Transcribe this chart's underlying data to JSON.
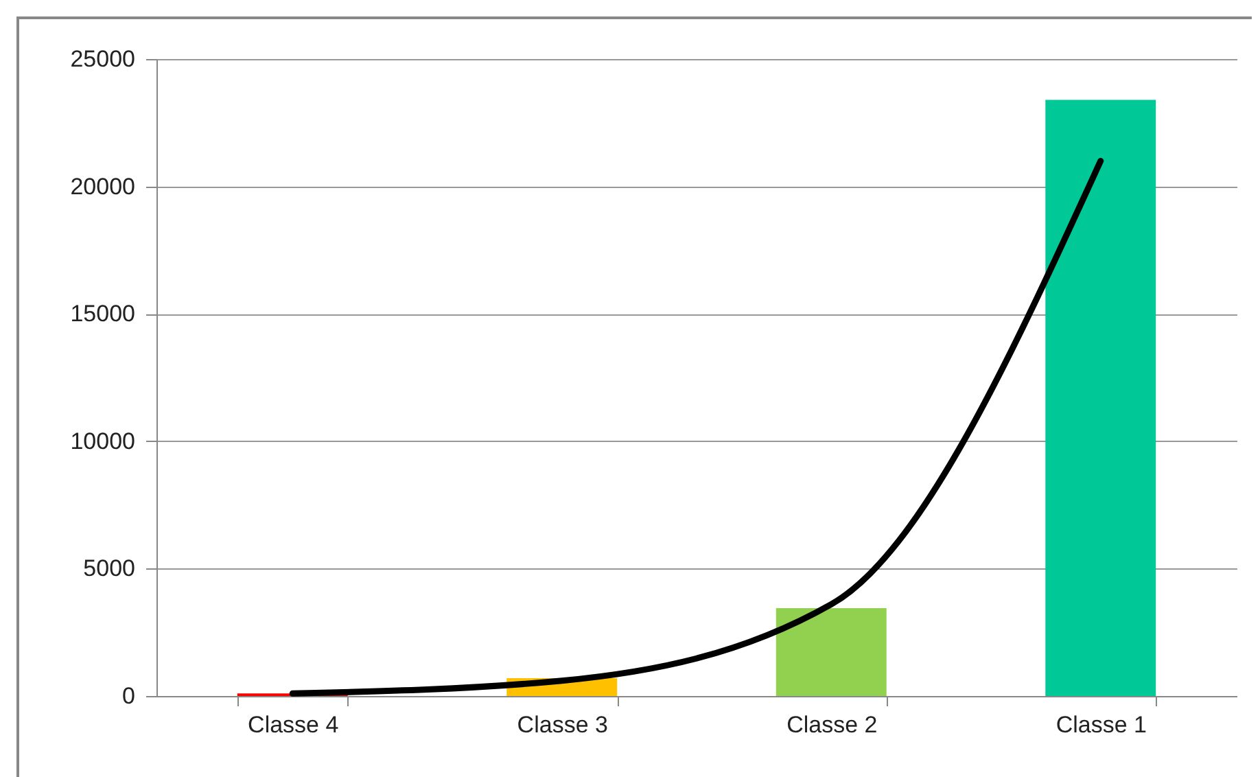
{
  "chart_data": {
    "type": "bar",
    "categories": [
      "Classe 4",
      "Classe 3",
      "Classe 2",
      "Classe 1"
    ],
    "series": [
      {
        "colors": [
          "#ff0000",
          "#ffc000",
          "#92d050",
          "#00c896"
        ],
        "values": [
          100,
          700,
          3450,
          23400
        ]
      },
      {
        "type": "line",
        "color": "#000000",
        "x": [
          "Classe 4",
          "Classe 3",
          "Classe 2",
          "Classe 1"
        ],
        "values": [
          100,
          600,
          3600,
          21000
        ]
      }
    ],
    "ylim": [
      0,
      25000
    ],
    "yticks": [
      0,
      5000,
      10000,
      15000,
      20000,
      25000
    ],
    "grid": "y"
  }
}
